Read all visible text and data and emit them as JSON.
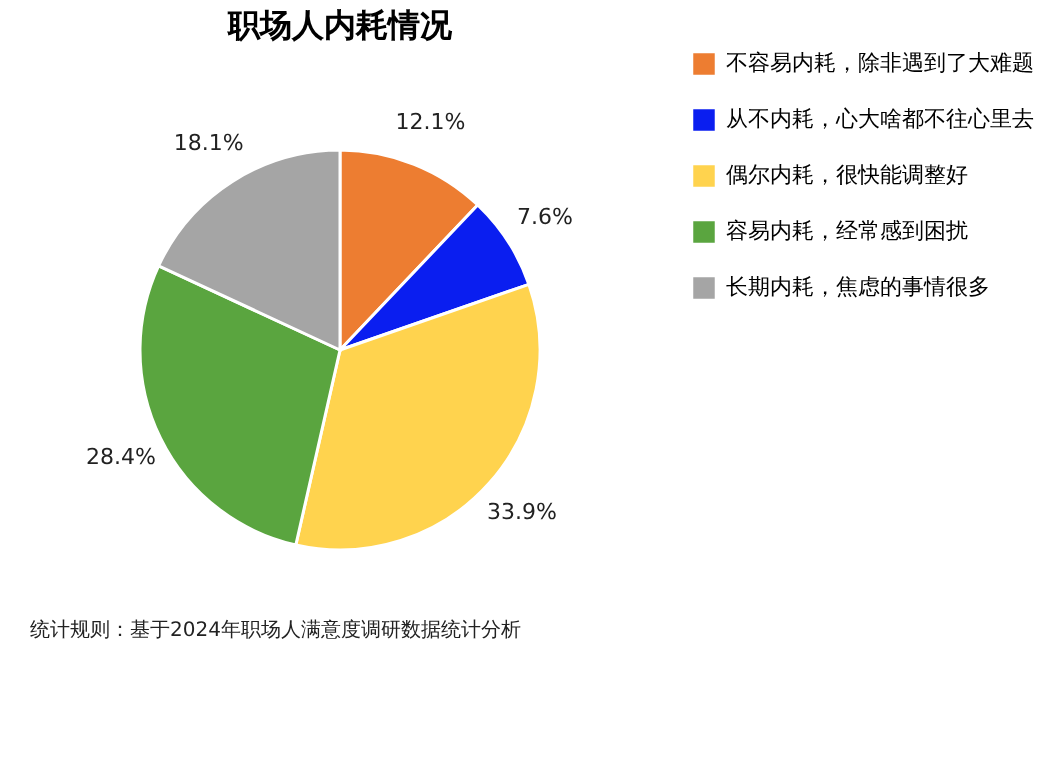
{
  "chart_data": {
    "type": "pie",
    "title": "职场人内耗情况",
    "categories": [
      "不容易内耗，除非遇到了大难题",
      "从不内耗，心大啥都不往心里去",
      "偶尔内耗，很快能调整好",
      "容易内耗，经常感到困扰",
      "长期内耗，焦虑的事情很多"
    ],
    "values": [
      12.1,
      7.6,
      33.9,
      28.4,
      18.1
    ],
    "colors": [
      "#ed7d31",
      "#0a1ef0",
      "#ffd34e",
      "#5aa53f",
      "#a5a5a5"
    ],
    "value_labels": [
      "12.1%",
      "7.6%",
      "33.9%",
      "28.4%",
      "18.1%"
    ],
    "legend": "right",
    "annotations": [
      "统计规则：基于2024年职场人满意度调研数据统计分析"
    ]
  }
}
